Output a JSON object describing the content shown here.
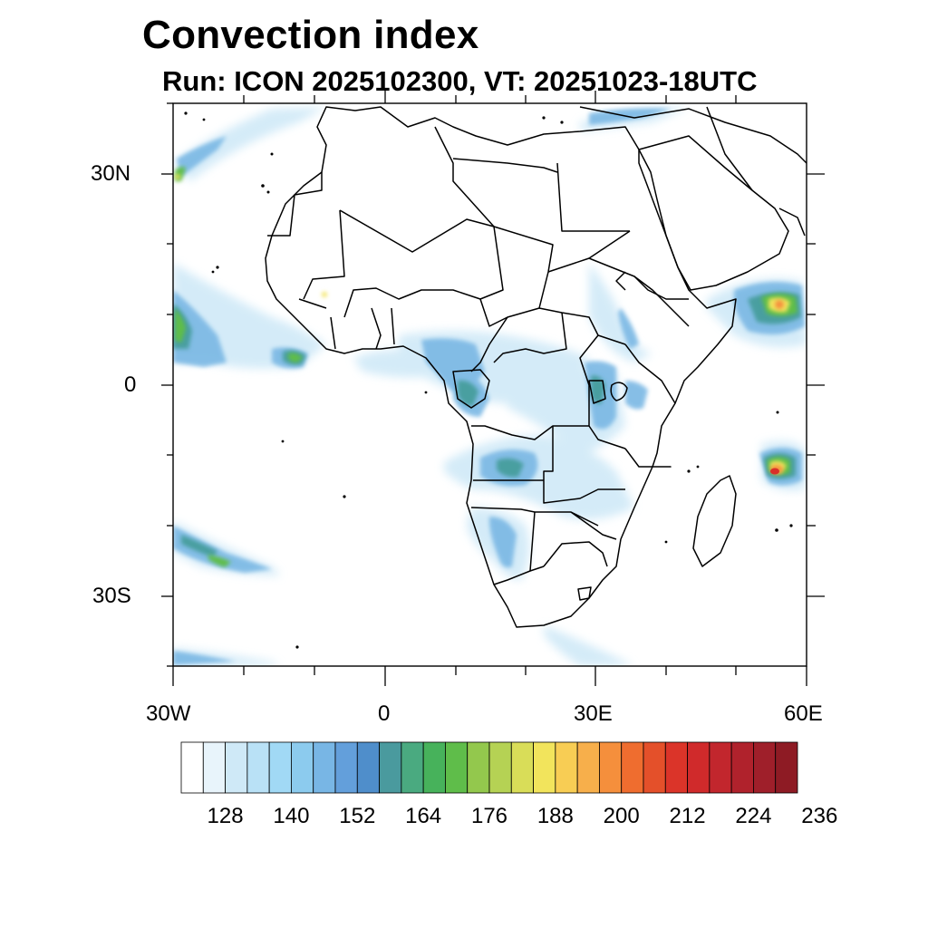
{
  "title": "Convection index",
  "subtitle": "Run: ICON 2025102300,  VT: 20251023-18UTC",
  "axes": {
    "lat_labels": [
      "30N",
      "0",
      "30S"
    ],
    "lon_labels": [
      "30W",
      "0",
      "30E",
      "60E"
    ]
  },
  "colorbar": {
    "tick_labels": [
      "128",
      "140",
      "152",
      "164",
      "176",
      "188",
      "200",
      "212",
      "224",
      "236"
    ],
    "colors": [
      "#ffffff",
      "#e8f4fb",
      "#cfe9f7",
      "#b9e1f6",
      "#a1d9f5",
      "#8ccbee",
      "#78b6e5",
      "#639fdb",
      "#4f8ecb",
      "#4a9a9e",
      "#4aaa80",
      "#47b25b",
      "#5fbd4a",
      "#93c84d",
      "#b5d254",
      "#d9dd58",
      "#f2e45c",
      "#f8cd54",
      "#f7af4b",
      "#f58f3c",
      "#ef6d2f",
      "#e4502a",
      "#db3429",
      "#d02a2b",
      "#c2262d",
      "#b0222c",
      "#9f1f2a",
      "#8e1b24"
    ]
  },
  "map_colors": {
    "border": "#000000",
    "light": "#cde8f7",
    "blue": "#7ab8e4",
    "teal": "#4a9fa0",
    "green": "#5fbd4a",
    "yellow": "#f2e45c",
    "orange": "#f58f3c",
    "red": "#d9302a"
  }
}
